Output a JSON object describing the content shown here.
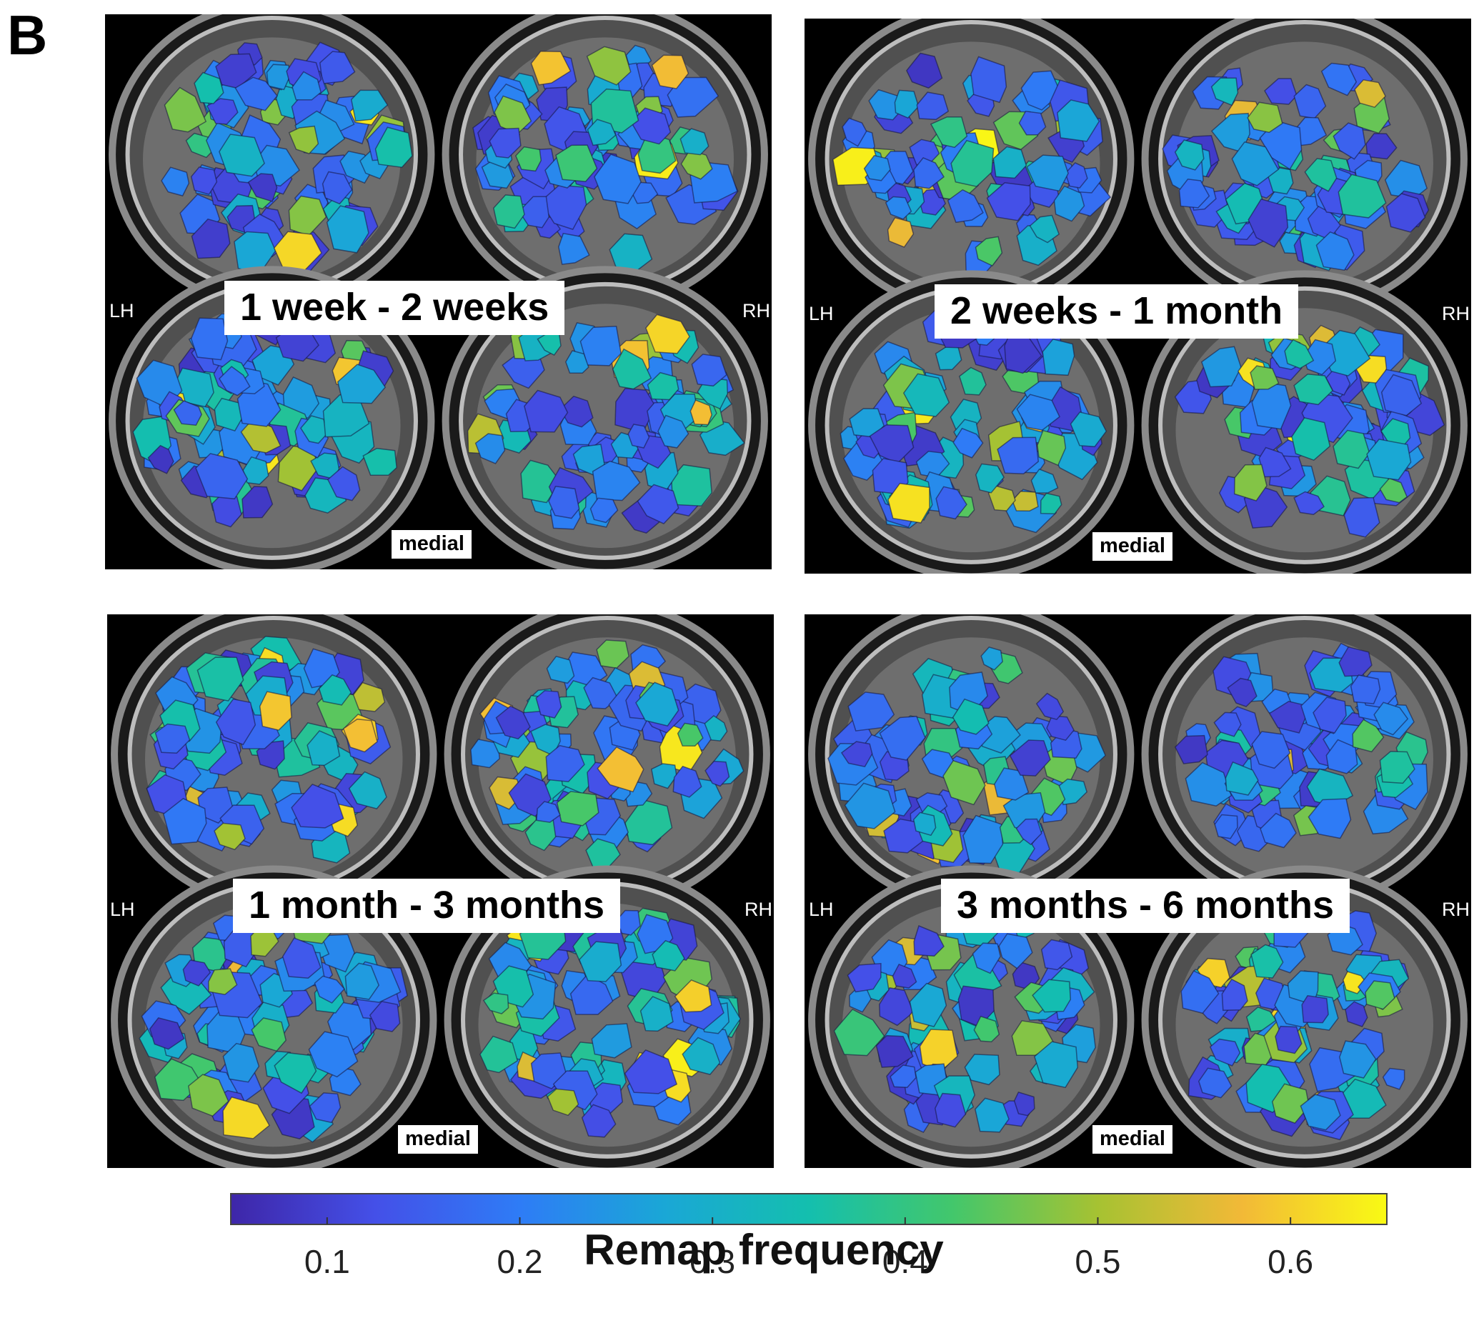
{
  "figure_label": "B",
  "panels": [
    {
      "title": "1 week - 2 weeks",
      "left_hemisphere": "LH",
      "right_hemisphere": "RH",
      "view_label": "medial"
    },
    {
      "title": "2 weeks - 1 month",
      "left_hemisphere": "LH",
      "right_hemisphere": "RH",
      "view_label": "medial"
    },
    {
      "title": "1 month - 3 months",
      "left_hemisphere": "LH",
      "right_hemisphere": "RH",
      "view_label": "medial"
    },
    {
      "title": "3 months - 6 months",
      "left_hemisphere": "LH",
      "right_hemisphere": "RH",
      "view_label": "medial"
    }
  ],
  "colorbar": {
    "title": "Remap frequency",
    "colormap": "parula",
    "range": [
      0.05,
      0.65
    ],
    "tick_labels": [
      "0.1",
      "0.2",
      "0.3",
      "0.4",
      "0.5",
      "0.6"
    ],
    "colors": [
      "#3e26a8",
      "#4450e8",
      "#2e7cf6",
      "#1aa7d6",
      "#14bfae",
      "#43c76b",
      "#a6c232",
      "#f2b937",
      "#f9fa14"
    ]
  }
}
